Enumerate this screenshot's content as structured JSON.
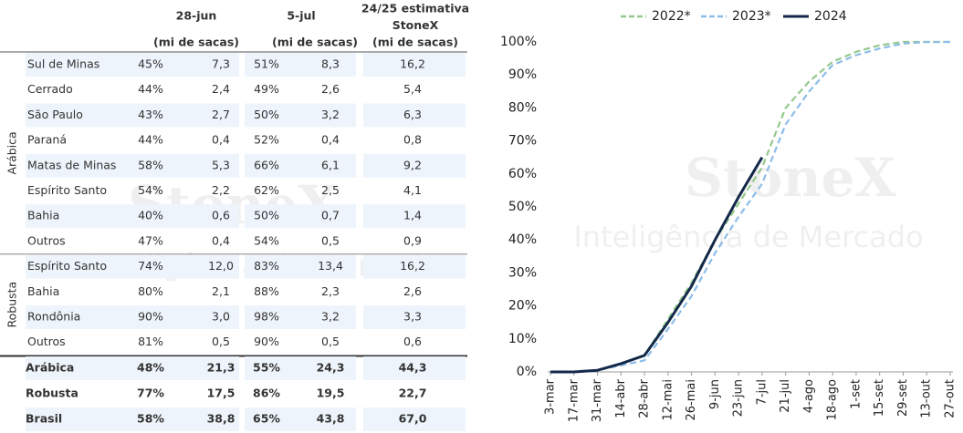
{
  "watermark": {
    "brand": "StoneX",
    "tagline": "Inteligência de Mercado"
  },
  "table": {
    "header": {
      "col1": "28-jun",
      "col2": "5-jul",
      "col3": [
        "24/25 estimativa",
        "StoneX",
        "(mi de sacas)"
      ],
      "units": [
        "(mi de sacas)",
        "(mi de sacas)"
      ]
    },
    "groups": [
      {
        "label": "Arábica",
        "rows": [
          [
            "Sul de Minas",
            "45%",
            "7,3",
            "51%",
            "8,3",
            "16,2"
          ],
          [
            "Cerrado",
            "44%",
            "2,4",
            "49%",
            "2,6",
            "5,4"
          ],
          [
            "São Paulo",
            "43%",
            "2,7",
            "50%",
            "3,2",
            "6,3"
          ],
          [
            "Paraná",
            "44%",
            "0,4",
            "52%",
            "0,4",
            "0,8"
          ],
          [
            "Matas de Minas",
            "58%",
            "5,3",
            "66%",
            "6,1",
            "9,2"
          ],
          [
            "Espírito Santo",
            "54%",
            "2,2",
            "62%",
            "2,5",
            "4,1"
          ],
          [
            "Bahia",
            "40%",
            "0,6",
            "50%",
            "0,7",
            "1,4"
          ],
          [
            "Outros",
            "47%",
            "0,4",
            "54%",
            "0,5",
            "0,9"
          ]
        ]
      },
      {
        "label": "Robusta",
        "rows": [
          [
            "Espírito Santo",
            "74%",
            "12,0",
            "83%",
            "13,4",
            "16,2"
          ],
          [
            "Bahia",
            "80%",
            "2,1",
            "88%",
            "2,3",
            "2,6"
          ],
          [
            "Rondônia",
            "90%",
            "3,0",
            "98%",
            "3,2",
            "3,3"
          ],
          [
            "Outros",
            "81%",
            "0,5",
            "90%",
            "0,5",
            "0,6"
          ]
        ]
      }
    ],
    "totals": [
      [
        "Arábica",
        "48%",
        "21,3",
        "55%",
        "24,3",
        "44,3"
      ],
      [
        "Robusta",
        "77%",
        "17,5",
        "86%",
        "19,5",
        "22,7"
      ],
      [
        "Brasil",
        "58%",
        "38,8",
        "65%",
        "43,8",
        "67,0"
      ]
    ]
  },
  "chart_data": {
    "type": "line",
    "categories": [
      "3-mar",
      "17-mar",
      "31-mar",
      "14-abr",
      "28-abr",
      "12-mai",
      "26-mai",
      "9-jun",
      "23-jun",
      "7-jul",
      "21-jul",
      "4-ago",
      "18-ago",
      "1-set",
      "15-set",
      "29-set",
      "13-out",
      "27-out"
    ],
    "series": [
      {
        "name": "2022*",
        "color": "#93c98c",
        "dashed": true,
        "values": [
          0,
          0,
          0.5,
          2.5,
          5,
          16,
          27,
          40,
          51,
          62,
          80,
          88,
          94,
          97,
          99,
          100,
          100,
          100
        ]
      },
      {
        "name": "2023*",
        "color": "#8dbde9",
        "dashed": true,
        "values": [
          0,
          0,
          0.5,
          2,
          3.5,
          13,
          23,
          36,
          47,
          57,
          75,
          85,
          93,
          96,
          98,
          99.5,
          100,
          100
        ]
      },
      {
        "name": "2024",
        "color": "#14294a",
        "dashed": false,
        "values": [
          0,
          0,
          0.5,
          2.5,
          5,
          15,
          26,
          40,
          53,
          65,
          null,
          null,
          null,
          null,
          null,
          null,
          null,
          null
        ]
      }
    ],
    "ylim": [
      0,
      100
    ],
    "yticks": [
      {
        "value": 0,
        "label": "0%"
      },
      {
        "value": 10,
        "label": "10%"
      },
      {
        "value": 20,
        "label": "20%"
      },
      {
        "value": 30,
        "label": "30%"
      },
      {
        "value": 40,
        "label": "40%"
      },
      {
        "value": 50,
        "label": "50%"
      },
      {
        "value": 60,
        "label": "60%"
      },
      {
        "value": 70,
        "label": "70%"
      },
      {
        "value": 80,
        "label": "80%"
      },
      {
        "value": 90,
        "label": "90%"
      },
      {
        "value": 100,
        "label": "100%"
      }
    ],
    "legend": "top"
  }
}
